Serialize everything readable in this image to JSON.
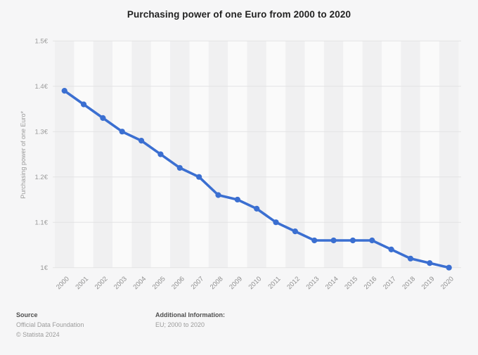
{
  "title": "Purchasing power of one Euro from 2000 to 2020",
  "chart_data": {
    "type": "line",
    "title": "Purchasing power of one Euro from 2000 to 2020",
    "x": [
      2000,
      2001,
      2002,
      2003,
      2004,
      2005,
      2006,
      2007,
      2008,
      2009,
      2010,
      2011,
      2012,
      2013,
      2014,
      2015,
      2016,
      2017,
      2018,
      2019,
      2020
    ],
    "series": [
      {
        "name": "Purchasing power of one Euro",
        "values": [
          1.39,
          1.36,
          1.33,
          1.3,
          1.28,
          1.25,
          1.22,
          1.2,
          1.16,
          1.15,
          1.13,
          1.1,
          1.08,
          1.06,
          1.06,
          1.06,
          1.06,
          1.04,
          1.02,
          1.01,
          1.0
        ]
      }
    ],
    "xlabel": "",
    "ylabel": "Purchasing power of one Euro*",
    "ylim": [
      1.0,
      1.5
    ],
    "yticks": [
      1,
      1.1,
      1.2,
      1.3,
      1.4,
      1.5
    ],
    "ytick_labels": [
      "1€",
      "1.1€",
      "1.2€",
      "1.3€",
      "1.4€",
      "1.5€"
    ],
    "grid": true,
    "legend": false,
    "colors": {
      "line": "#3b6fd1",
      "gridline": "#e3e3e4",
      "stripe_dark": "#f0f0f1",
      "stripe_light": "#fafafa",
      "tick_text": "#9b9b9b",
      "x_tick_text": "#8f8f8f"
    }
  },
  "footer": {
    "source_label": "Source",
    "source_name": "Official Data Foundation",
    "copyright": "© Statista 2024",
    "additional_info_label": "Additional Information:",
    "additional_info_value": "EU; 2000 to 2020"
  }
}
